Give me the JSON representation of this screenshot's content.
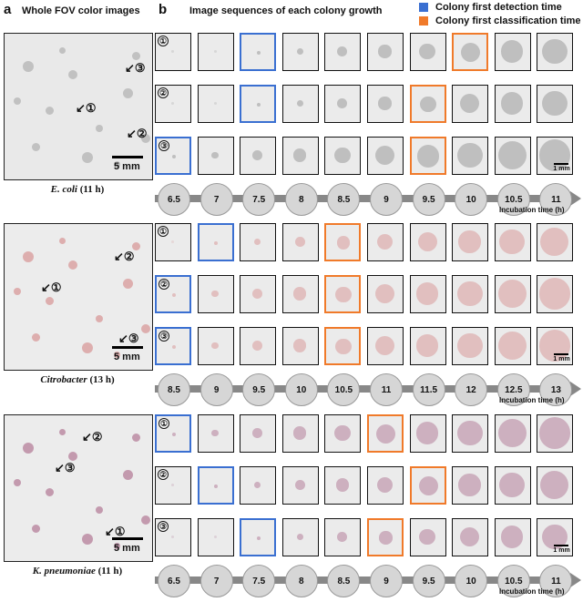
{
  "panel_a_letter": "a",
  "panel_b_letter": "b",
  "panel_a_header": "Whole FOV color images",
  "panel_b_header": "Image sequences of each colony growth",
  "legend": {
    "detection_label": "Colony first detection time",
    "classification_label": "Colony first classification time",
    "detection_color": "#3a6fd1",
    "classification_color": "#f07a2a"
  },
  "scale_fov": "5 mm",
  "scale_cell": "1 mm",
  "incubation_label": "Incubation time (h)",
  "colony_labels": [
    "①",
    "②",
    "③"
  ],
  "groups": [
    {
      "species": "E. coli",
      "time_suffix": "(11 h)",
      "times": [
        "6.5",
        "7",
        "7.5",
        "8",
        "8.5",
        "9",
        "9.5",
        "10",
        "10.5",
        "11"
      ],
      "detection_index": [
        2,
        2,
        0
      ],
      "classification_index": [
        7,
        6,
        6
      ],
      "colony_color": "#9a9a9a",
      "bg_color": "#e9e9e9"
    },
    {
      "species": "Citrobacter",
      "time_suffix": "(13 h)",
      "times": [
        "8.5",
        "9",
        "9.5",
        "10",
        "10.5",
        "11",
        "11.5",
        "12",
        "12.5",
        "13"
      ],
      "detection_index": [
        1,
        0,
        0
      ],
      "classification_index": [
        4,
        4,
        4
      ],
      "colony_color": "#d89a9a",
      "bg_color": "#ececec"
    },
    {
      "species": "K. pneumoniae",
      "time_suffix": "(11 h)",
      "times": [
        "6.5",
        "7",
        "7.5",
        "8",
        "8.5",
        "9",
        "9.5",
        "10",
        "10.5",
        "11"
      ],
      "detection_index": [
        0,
        1,
        2
      ],
      "classification_index": [
        5,
        6,
        5
      ],
      "colony_color": "#b57f9a",
      "bg_color": "#ececec"
    }
  ]
}
